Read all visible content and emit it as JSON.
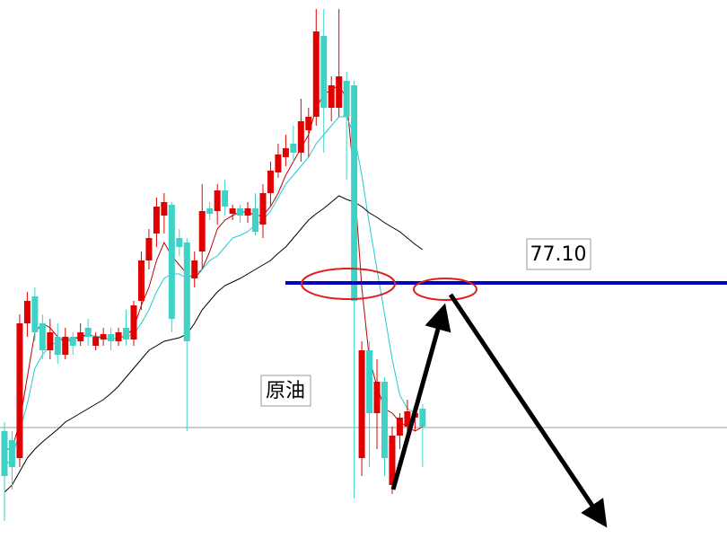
{
  "chart_data": {
    "type": "candlestick",
    "annotation": "原油",
    "ylim": [
      74.26,
      80.25
    ],
    "up_color": "#e00000",
    "down_color": "#3fd3c8",
    "candles": {
      "open": [
        75.45,
        75.35,
        75.15,
        76.65,
        76.95,
        76.65,
        76.35,
        76.5,
        76.3,
        76.5,
        76.45,
        76.6,
        76.4,
        76.47,
        76.53,
        76.45,
        76.6,
        76.47,
        76.9,
        77.35,
        77.65,
        77.85,
        77.97,
        77.6,
        77.55,
        77.15,
        77.45,
        77.93,
        77.9,
        78.13,
        77.87,
        77.93,
        77.85,
        77.93,
        77.75,
        78.1,
        78.33,
        78.5,
        78.65,
        78.55,
        78.8,
        78.95,
        79.85,
        79.05,
        79.05,
        79.35,
        79.3,
        75.15,
        76.35,
        75.65,
        76.0,
        74.85,
        75.4,
        75.5,
        75.6,
        75.7
      ],
      "high": [
        75.55,
        75.45,
        76.75,
        77.0,
        77.05,
        76.75,
        76.7,
        76.65,
        76.6,
        76.55,
        76.65,
        76.7,
        76.55,
        76.6,
        76.6,
        76.6,
        76.8,
        76.9,
        77.45,
        77.7,
        78.05,
        78.1,
        78.0,
        77.7,
        77.6,
        77.45,
        78.2,
        78.0,
        78.2,
        78.25,
        77.97,
        77.97,
        78.0,
        78.1,
        78.2,
        78.45,
        78.65,
        78.75,
        78.85,
        79.15,
        79.05,
        80.15,
        80.15,
        79.4,
        80.15,
        79.45,
        79.35,
        76.45,
        76.45,
        76.25,
        76.05,
        75.5,
        75.65,
        75.8,
        75.7,
        75.75
      ],
      "low": [
        74.45,
        74.8,
        75.05,
        76.5,
        76.45,
        76.25,
        76.25,
        76.2,
        76.25,
        76.3,
        76.4,
        76.4,
        76.35,
        76.4,
        76.35,
        76.4,
        76.4,
        76.4,
        76.8,
        77.25,
        77.5,
        77.65,
        76.55,
        77.4,
        75.45,
        77.05,
        77.25,
        77.8,
        77.75,
        77.85,
        77.8,
        77.77,
        77.77,
        77.63,
        77.6,
        77.95,
        78.27,
        78.4,
        78.45,
        78.45,
        78.5,
        78.85,
        78.55,
        78.9,
        78.95,
        78.25,
        74.7,
        74.95,
        75.05,
        75.25,
        74.95,
        74.75,
        75.25,
        75.35,
        75.45,
        75.05
      ],
      "close": [
        74.95,
        75.05,
        76.65,
        76.9,
        76.55,
        76.35,
        76.55,
        76.3,
        76.5,
        76.4,
        76.55,
        76.5,
        76.5,
        76.53,
        76.45,
        76.55,
        76.47,
        76.85,
        77.35,
        77.6,
        77.95,
        78.0,
        76.7,
        77.5,
        76.45,
        77.35,
        77.9,
        77.87,
        78.13,
        77.95,
        77.93,
        77.85,
        77.93,
        77.67,
        78.1,
        78.35,
        78.53,
        78.6,
        78.55,
        78.9,
        78.95,
        79.9,
        79.05,
        79.3,
        79.4,
        78.95,
        76.9,
        76.35,
        75.65,
        76.0,
        75.15,
        75.4,
        75.6,
        75.67,
        75.65,
        75.5
      ]
    },
    "series": [
      {
        "color": "#c00000",
        "values": [
          75.25,
          75.25,
          75.55,
          76.05,
          76.55,
          76.65,
          76.6,
          76.5,
          76.45,
          76.47,
          76.5,
          76.53,
          76.5,
          76.49,
          76.47,
          76.49,
          76.51,
          76.6,
          76.85,
          77.05,
          77.35,
          77.55,
          77.4,
          77.3,
          77.2,
          77.15,
          77.25,
          77.45,
          77.7,
          77.8,
          77.85,
          77.89,
          77.89,
          77.85,
          77.85,
          77.95,
          78.1,
          78.3,
          78.45,
          78.6,
          78.75,
          79.05,
          79.2,
          79.25,
          79.3,
          79.15,
          78.25,
          77.05,
          76.25,
          75.95,
          75.7,
          75.65,
          75.55,
          75.5,
          75.45,
          75.5
        ]
      },
      {
        "color": "#20c8d8",
        "values": [
          75.05,
          75.15,
          75.45,
          75.75,
          76.15,
          76.3,
          76.4,
          76.45,
          76.47,
          76.49,
          76.5,
          76.51,
          76.51,
          76.49,
          76.47,
          76.49,
          76.5,
          76.53,
          76.65,
          76.8,
          77.0,
          77.15,
          77.2,
          77.2,
          77.15,
          77.2,
          77.25,
          77.35,
          77.4,
          77.5,
          77.6,
          77.63,
          77.67,
          77.75,
          77.8,
          77.9,
          78.05,
          78.2,
          78.3,
          78.4,
          78.5,
          78.65,
          78.75,
          78.85,
          78.95,
          78.95,
          78.75,
          78.3,
          77.75,
          77.25,
          76.75,
          76.25,
          75.85,
          75.7,
          75.65,
          null
        ]
      },
      {
        "color": "#000000",
        "values": [
          74.77,
          74.85,
          75.0,
          75.15,
          75.25,
          75.33,
          75.4,
          75.47,
          75.55,
          75.6,
          75.65,
          75.7,
          75.75,
          75.8,
          75.87,
          75.95,
          76.05,
          76.15,
          76.25,
          76.35,
          76.4,
          76.45,
          76.47,
          76.49,
          76.53,
          76.65,
          76.8,
          76.9,
          77.0,
          77.07,
          77.11,
          77.15,
          77.2,
          77.25,
          77.3,
          77.35,
          77.43,
          77.5,
          77.6,
          77.7,
          77.8,
          77.87,
          77.93,
          78.0,
          78.07,
          78.03,
          78.0,
          77.95,
          77.88,
          77.83,
          77.77,
          77.72,
          77.67,
          77.6,
          77.53,
          77.47
        ]
      }
    ],
    "price_line": {
      "value": 77.1,
      "label": "77.10",
      "color": "#0000c0"
    },
    "reference_line": {
      "value": 75.49,
      "color": "#8fa3a3"
    }
  }
}
